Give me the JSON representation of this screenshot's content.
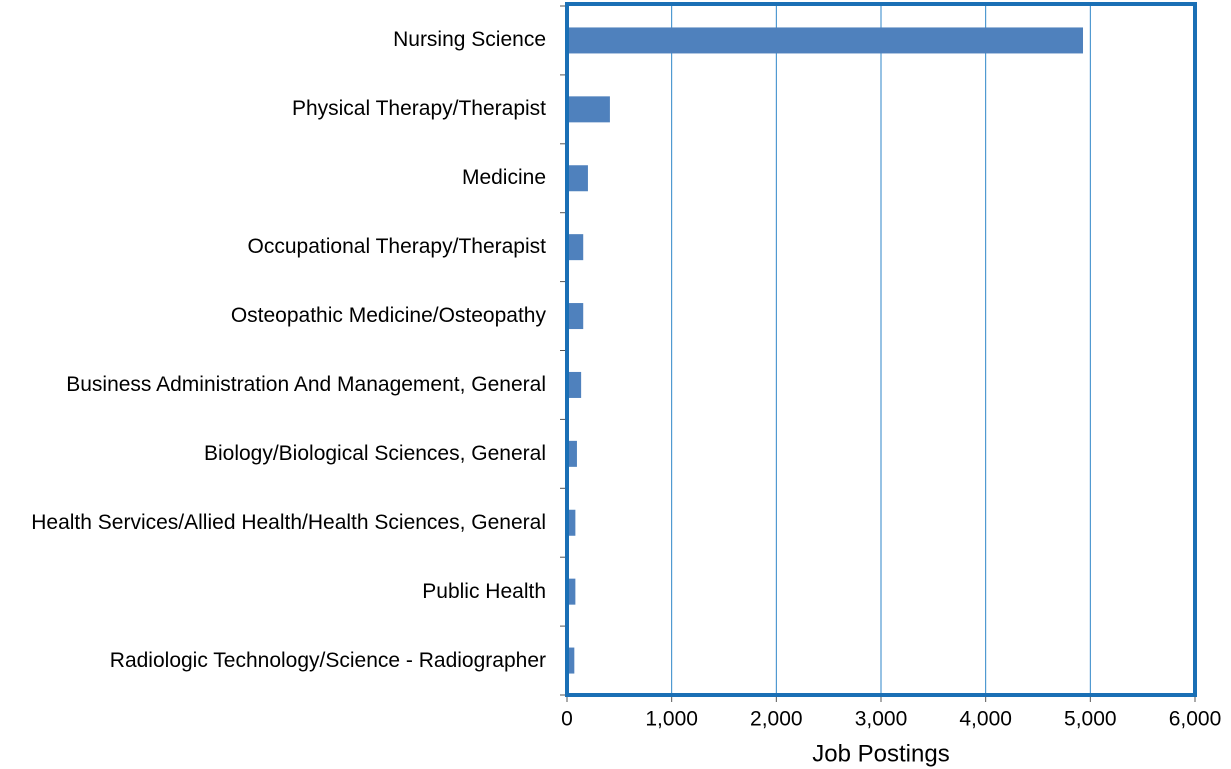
{
  "chart_data": {
    "type": "barh",
    "categories": [
      "Nursing Science",
      "Physical Therapy/Therapist",
      "Medicine",
      "Occupational Therapy/Therapist",
      "Osteopathic Medicine/Osteopathy",
      "Business Administration And Management, General",
      "Biology/Biological Sciences, General",
      "Health Services/Allied Health/Health Sciences, General",
      "Public Health",
      "Radiologic Technology/Science - Radiographer"
    ],
    "values": [
      4930,
      410,
      200,
      155,
      155,
      135,
      95,
      80,
      80,
      70
    ],
    "color": "#4f81bd",
    "xlabel": "Job Postings",
    "xlim": [
      0,
      6000
    ],
    "xticks": [
      0,
      {
        "value": 1000,
        "label": "1,000"
      },
      {
        "value": 2000,
        "label": "2,000"
      },
      {
        "value": 3000,
        "label": "3,000"
      },
      {
        "value": 4000,
        "label": "4,000"
      },
      {
        "value": 5000,
        "label": "5,000"
      },
      {
        "value": 6000,
        "label": "6,000"
      }
    ],
    "grid": true
  }
}
